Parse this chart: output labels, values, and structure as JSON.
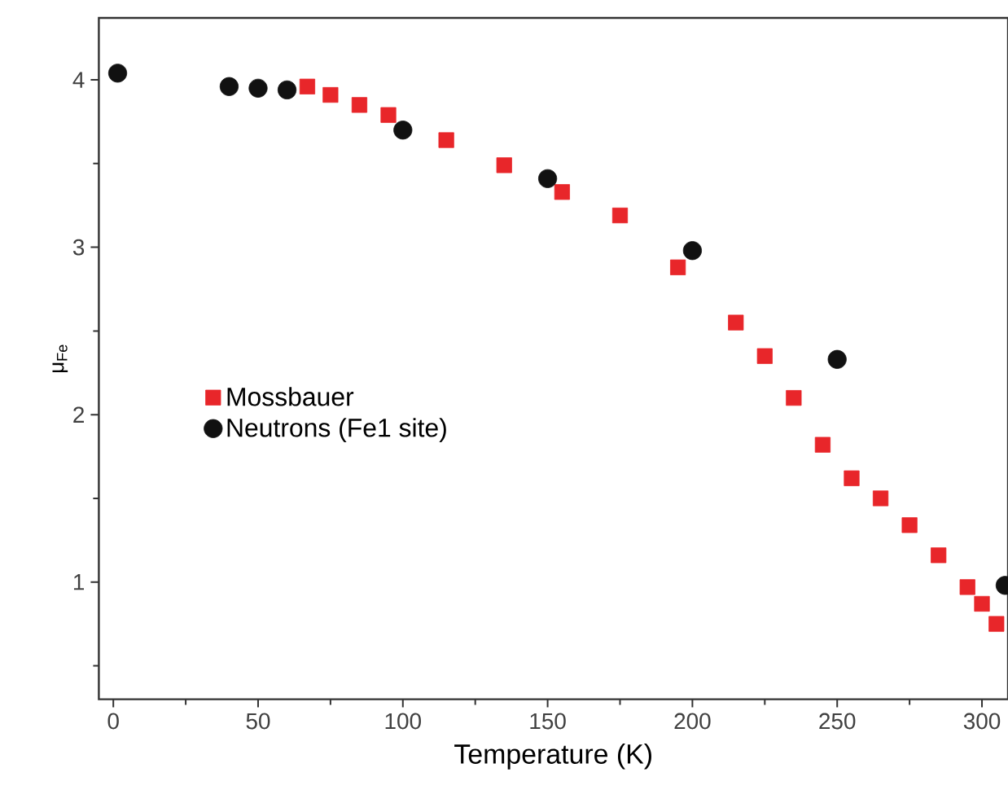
{
  "chart_data": {
    "type": "scatter",
    "xlabel": "Temperature (K)",
    "ylabel": "μ$_{Fe}$",
    "xlim": [
      -5,
      309
    ],
    "ylim": [
      0.3,
      4.37
    ],
    "xticks": [
      0,
      {
        "value": 25,
        "label": null
      },
      50,
      {
        "value": 75,
        "label": null
      },
      100,
      {
        "value": 125,
        "label": null
      },
      150,
      {
        "value": 175,
        "label": null
      },
      200,
      {
        "value": 225,
        "label": null
      },
      250,
      {
        "value": 275,
        "label": null
      },
      300
    ],
    "yticks": [
      {
        "value": 0.5,
        "label": null
      },
      1,
      {
        "value": 1.5,
        "label": null
      },
      2,
      {
        "value": 2.5,
        "label": null
      },
      3,
      {
        "value": 3.5,
        "label": null
      },
      4
    ],
    "legend": "left",
    "grid": false,
    "series": [
      {
        "name": "Mossbauer",
        "color": "#e8262a",
        "marker": "square",
        "x": [
          67,
          75,
          85,
          95,
          115,
          135,
          155,
          175,
          195,
          215,
          225,
          235,
          245,
          255,
          265,
          275,
          285,
          295,
          300,
          305
        ],
        "values": [
          3.96,
          3.91,
          3.85,
          3.79,
          3.64,
          3.49,
          3.33,
          3.19,
          2.88,
          2.55,
          2.35,
          2.1,
          1.82,
          1.62,
          1.5,
          1.34,
          1.16,
          0.97,
          0.87,
          0.75
        ]
      },
      {
        "name": "Neutrons (Fe1 site)",
        "color": "#111111",
        "marker": "circle",
        "x": [
          1.5,
          40,
          50,
          60,
          100,
          150,
          200,
          250,
          308
        ],
        "values": [
          4.04,
          3.96,
          3.95,
          3.94,
          3.7,
          3.41,
          2.98,
          2.33,
          0.98
        ]
      }
    ]
  }
}
